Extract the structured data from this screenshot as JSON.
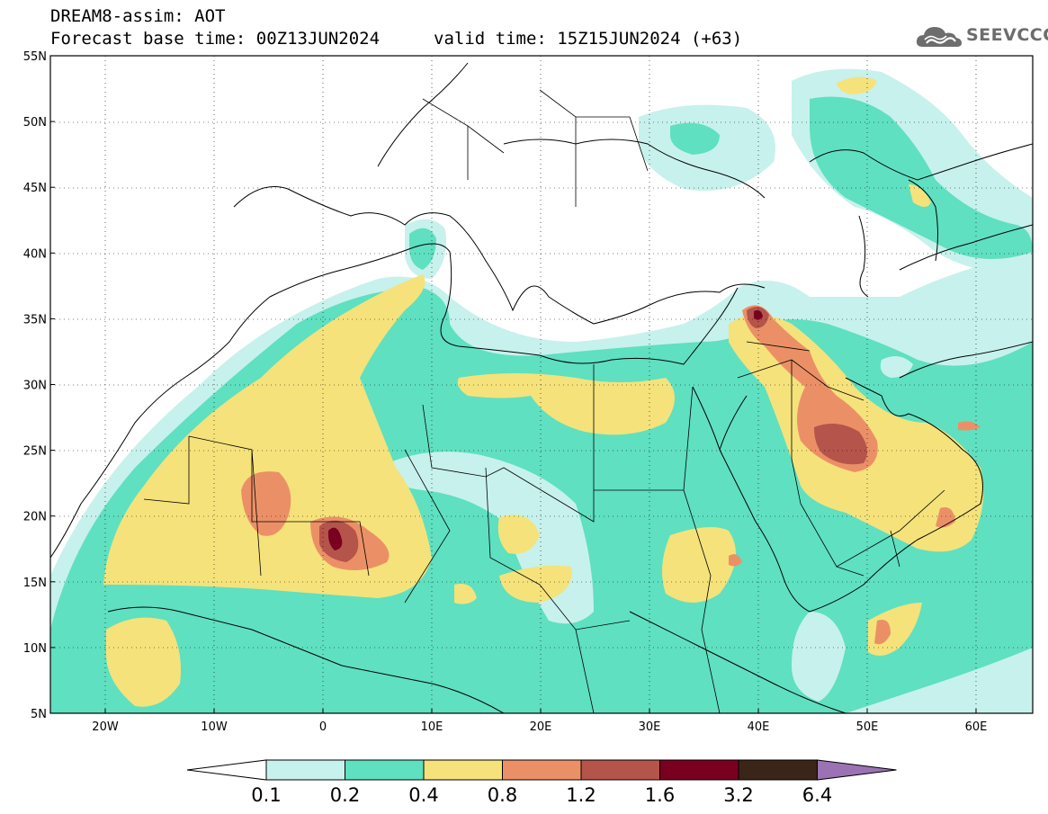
{
  "header": {
    "title": "DREAM8-assim: AOT",
    "base_time": "Forecast base time: 00Z13JUN2024",
    "valid_time": "valid time: 15Z15JUN2024 (+63)"
  },
  "logo": {
    "text": "SEEVCCC",
    "icon": "cloud-icon",
    "color": "#6d6d6d"
  },
  "map": {
    "lat_ticks": [
      "55N",
      "50N",
      "45N",
      "40N",
      "35N",
      "30N",
      "25N",
      "20N",
      "15N",
      "10N",
      "5N"
    ],
    "lon_ticks": [
      "20W",
      "10W",
      "0",
      "10E",
      "20E",
      "30E",
      "40E",
      "50E",
      "60E"
    ],
    "lat_range": [
      5,
      55
    ],
    "lon_range": [
      -25,
      65
    ]
  },
  "colorbar": {
    "thresholds": [
      "0.1",
      "0.2",
      "0.4",
      "0.8",
      "1.2",
      "1.6",
      "3.2",
      "6.4"
    ],
    "colors": [
      "#c7f1ec",
      "#5fe0c0",
      "#f5e27b",
      "#eb9066",
      "#b5544a",
      "#7a0020",
      "#3b2418",
      "#9b72b4"
    ]
  }
}
